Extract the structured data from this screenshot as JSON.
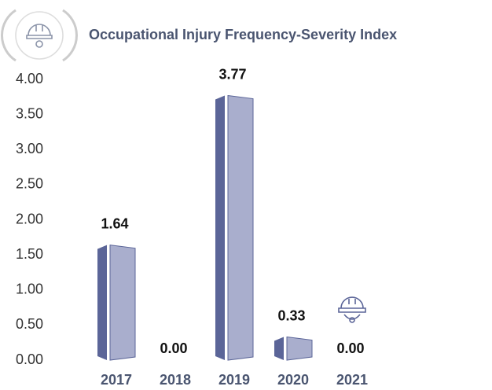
{
  "chart_data": {
    "type": "bar",
    "title": "Occupational Injury Frequency-Severity Index",
    "categories": [
      "2017",
      "2018",
      "2019",
      "2020",
      "2021"
    ],
    "values": [
      1.64,
      0,
      3.77,
      0.33,
      0
    ],
    "value_labels": [
      "1.64",
      "0.00",
      "3.77",
      "0.33",
      "0.00"
    ],
    "colors": {
      "side": "#5b6598",
      "front": "#a9aecd"
    },
    "ylim": [
      0,
      4
    ],
    "yticks": [
      {
        "value": 0,
        "label": "0.00"
      },
      {
        "value": 0.5,
        "label": "0.50"
      },
      {
        "value": 1,
        "label": "1.00"
      },
      {
        "value": 1.5,
        "label": "1.50"
      },
      {
        "value": 2,
        "label": "2.00"
      },
      {
        "value": 2.5,
        "label": "2.50"
      },
      {
        "value": 3,
        "label": "3.00"
      },
      {
        "value": 3.5,
        "label": "3.50"
      },
      {
        "value": 4,
        "label": "4.00"
      }
    ]
  }
}
